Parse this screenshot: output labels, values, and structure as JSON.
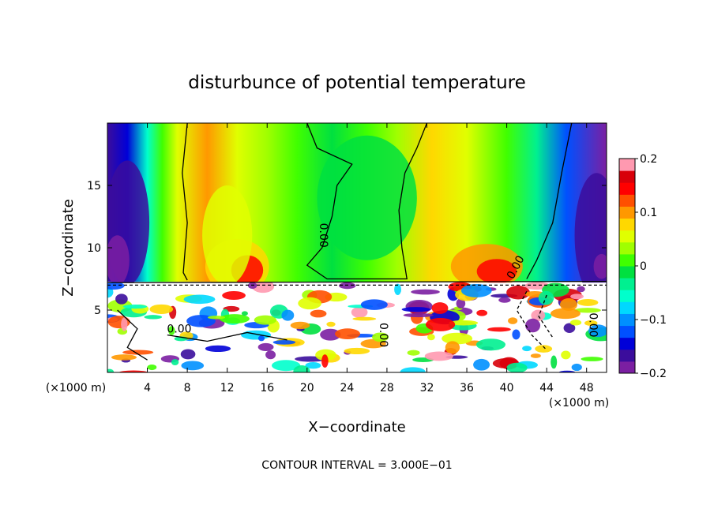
{
  "chart_data": {
    "type": "heatmap",
    "title": "disturbunce of potential temperature",
    "xlabel": "X−coordinate",
    "ylabel": "Z−coordinate",
    "x_unit": "(×1000 m)",
    "x_unit_right": "(×1000 m)",
    "xlim": [
      0,
      50
    ],
    "ylim": [
      0,
      20
    ],
    "x_ticks": [
      4,
      8,
      12,
      16,
      20,
      24,
      28,
      32,
      36,
      40,
      44,
      48
    ],
    "y_ticks": [
      5,
      10,
      15
    ],
    "colorbar": {
      "min": -0.2,
      "max": 0.2,
      "tick_values": [
        0.2,
        0.1,
        0,
        -0.1,
        -0.2
      ],
      "tick_labels": [
        "0.2",
        "0.1",
        "0",
        "−0.1",
        "−0.2"
      ],
      "colors": [
        "#7b1fa2",
        "#3b0d9c",
        "#0000d8",
        "#0050ff",
        "#0090ff",
        "#00d8ff",
        "#00ffcc",
        "#00f090",
        "#00e040",
        "#40ff00",
        "#a0ff00",
        "#e0ff00",
        "#ffd800",
        "#ff9800",
        "#ff5000",
        "#ff0000",
        "#d8000a",
        "#ff99b0"
      ]
    },
    "contour_label": "0.00",
    "footer": "CONTOUR INTERVAL = 3.000E−01"
  }
}
